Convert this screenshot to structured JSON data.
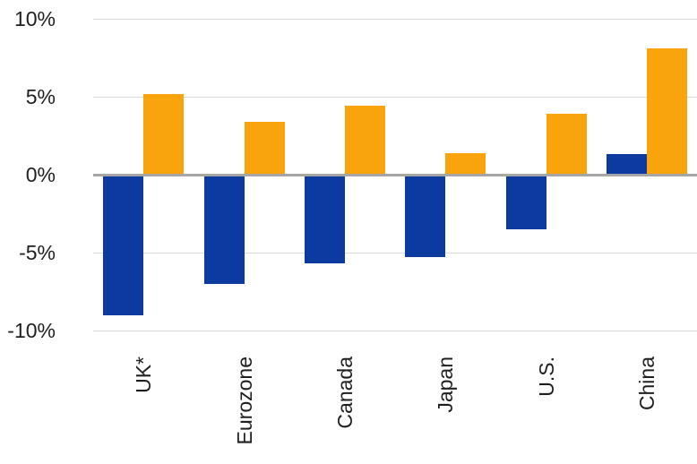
{
  "chart_data": {
    "type": "bar",
    "categories": [
      "UK*",
      "Eurozone",
      "Canada",
      "Japan",
      "U.S.",
      "China"
    ],
    "series": [
      {
        "name": "blue",
        "color": "#0C3A9F",
        "values": [
          -9.0,
          -7.0,
          -5.7,
          -5.3,
          -3.5,
          1.3
        ]
      },
      {
        "name": "orange",
        "color": "#F9A40D",
        "values": [
          5.2,
          3.4,
          4.4,
          1.4,
          3.9,
          8.1
        ]
      }
    ],
    "title": "",
    "xlabel": "",
    "ylabel": "",
    "ylim": [
      -10,
      10
    ],
    "yticks": [
      10,
      5,
      0,
      -5,
      -10
    ],
    "ytick_labels": [
      "10%",
      "5%",
      "0%",
      "-5%",
      "-10%"
    ],
    "grid": true,
    "legend": "none",
    "grid_color": "#D9D9D9",
    "zero_line_color": "#A6A6A6",
    "text_color": "#1F1F1F",
    "background": "#FFFFFF"
  }
}
